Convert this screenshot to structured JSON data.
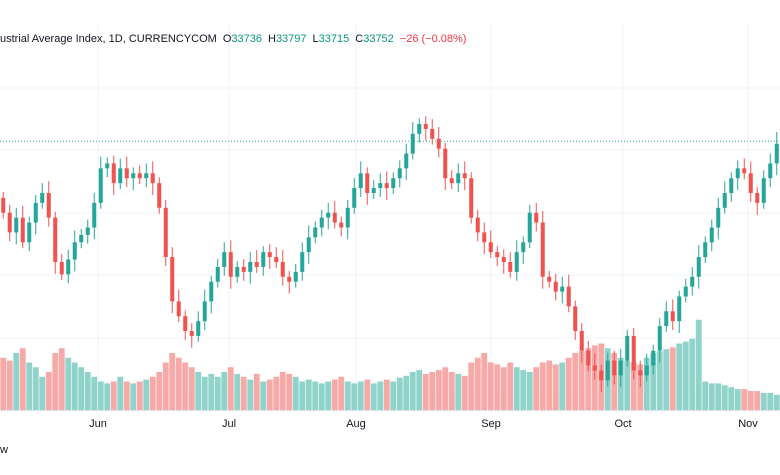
{
  "legend": {
    "title": "ustrial Average Index, 1D, CURRENCYCOM",
    "open_label": "O",
    "open": "33736",
    "high_label": "H",
    "high": "33797",
    "low_label": "L",
    "low": "33715",
    "close_label": "C",
    "close": "33752",
    "change": "−26 (−0.08%)"
  },
  "footer": {
    "text": "w"
  },
  "colors": {
    "up": "#26a69a",
    "down": "#ef5350",
    "up_vol": "#8fd3ca",
    "down_vol": "#f6a9a7",
    "grid": "#f0f3fa"
  },
  "chart_data": {
    "type": "candlestick",
    "x_tick_labels": [
      "Jun",
      "Jul",
      "Aug",
      "Sep",
      "Oct",
      "Nov"
    ],
    "price_range": [
      28500,
      35500
    ],
    "reference_line": 33750,
    "candles": [
      {
        "o": 32600,
        "c": 32300,
        "v": 0.55
      },
      {
        "o": 32300,
        "c": 31900,
        "v": 0.52
      },
      {
        "o": 31900,
        "c": 32200,
        "v": 0.6
      },
      {
        "o": 32200,
        "c": 31700,
        "v": 0.65
      },
      {
        "o": 31700,
        "c": 32100,
        "v": 0.5
      },
      {
        "o": 32100,
        "c": 32500,
        "v": 0.45
      },
      {
        "o": 32500,
        "c": 32700,
        "v": 0.35
      },
      {
        "o": 32700,
        "c": 32200,
        "v": 0.4
      },
      {
        "o": 32200,
        "c": 31300,
        "v": 0.6
      },
      {
        "o": 31300,
        "c": 31050,
        "v": 0.65
      },
      {
        "o": 31050,
        "c": 31350,
        "v": 0.55
      },
      {
        "o": 31350,
        "c": 31700,
        "v": 0.5
      },
      {
        "o": 31700,
        "c": 31850,
        "v": 0.45
      },
      {
        "o": 31850,
        "c": 32000,
        "v": 0.4
      },
      {
        "o": 32000,
        "c": 32500,
        "v": 0.35
      },
      {
        "o": 32500,
        "c": 33200,
        "v": 0.3
      },
      {
        "o": 33200,
        "c": 33300,
        "v": 0.28
      },
      {
        "o": 33300,
        "c": 32900,
        "v": 0.3
      },
      {
        "o": 32900,
        "c": 33200,
        "v": 0.35
      },
      {
        "o": 33200,
        "c": 33000,
        "v": 0.3
      },
      {
        "o": 33000,
        "c": 33100,
        "v": 0.28
      },
      {
        "o": 33100,
        "c": 33000,
        "v": 0.3
      },
      {
        "o": 33000,
        "c": 33100,
        "v": 0.32
      },
      {
        "o": 33100,
        "c": 32900,
        "v": 0.35
      },
      {
        "o": 32900,
        "c": 32400,
        "v": 0.4
      },
      {
        "o": 32400,
        "c": 31400,
        "v": 0.5
      },
      {
        "o": 31400,
        "c": 30500,
        "v": 0.6
      },
      {
        "o": 30500,
        "c": 30200,
        "v": 0.55
      },
      {
        "o": 30200,
        "c": 29900,
        "v": 0.5
      },
      {
        "o": 29900,
        "c": 29800,
        "v": 0.45
      },
      {
        "o": 29800,
        "c": 30100,
        "v": 0.4
      },
      {
        "o": 30100,
        "c": 30500,
        "v": 0.35
      },
      {
        "o": 30500,
        "c": 30900,
        "v": 0.38
      },
      {
        "o": 30900,
        "c": 31200,
        "v": 0.35
      },
      {
        "o": 31200,
        "c": 31500,
        "v": 0.4
      },
      {
        "o": 31500,
        "c": 31000,
        "v": 0.45
      },
      {
        "o": 31000,
        "c": 31200,
        "v": 0.38
      },
      {
        "o": 31200,
        "c": 31100,
        "v": 0.35
      },
      {
        "o": 31100,
        "c": 31300,
        "v": 0.32
      },
      {
        "o": 31300,
        "c": 31200,
        "v": 0.38
      },
      {
        "o": 31200,
        "c": 31500,
        "v": 0.3
      },
      {
        "o": 31500,
        "c": 31400,
        "v": 0.32
      },
      {
        "o": 31400,
        "c": 31300,
        "v": 0.35
      },
      {
        "o": 31300,
        "c": 31000,
        "v": 0.4
      },
      {
        "o": 31000,
        "c": 30900,
        "v": 0.38
      },
      {
        "o": 30900,
        "c": 31100,
        "v": 0.35
      },
      {
        "o": 31100,
        "c": 31500,
        "v": 0.3
      },
      {
        "o": 31500,
        "c": 31800,
        "v": 0.32
      },
      {
        "o": 31800,
        "c": 32000,
        "v": 0.3
      },
      {
        "o": 32000,
        "c": 32200,
        "v": 0.28
      },
      {
        "o": 32200,
        "c": 32300,
        "v": 0.3
      },
      {
        "o": 32300,
        "c": 32100,
        "v": 0.32
      },
      {
        "o": 32100,
        "c": 32000,
        "v": 0.35
      },
      {
        "o": 32000,
        "c": 32400,
        "v": 0.3
      },
      {
        "o": 32400,
        "c": 32800,
        "v": 0.28
      },
      {
        "o": 32800,
        "c": 33100,
        "v": 0.3
      },
      {
        "o": 33100,
        "c": 32700,
        "v": 0.32
      },
      {
        "o": 32700,
        "c": 32800,
        "v": 0.28
      },
      {
        "o": 32800,
        "c": 32900,
        "v": 0.3
      },
      {
        "o": 32900,
        "c": 32800,
        "v": 0.32
      },
      {
        "o": 32800,
        "c": 33000,
        "v": 0.3
      },
      {
        "o": 33000,
        "c": 33200,
        "v": 0.34
      },
      {
        "o": 33200,
        "c": 33500,
        "v": 0.36
      },
      {
        "o": 33500,
        "c": 33900,
        "v": 0.4
      },
      {
        "o": 33900,
        "c": 34100,
        "v": 0.42
      },
      {
        "o": 34100,
        "c": 34000,
        "v": 0.38
      },
      {
        "o": 34000,
        "c": 33800,
        "v": 0.4
      },
      {
        "o": 33800,
        "c": 33600,
        "v": 0.42
      },
      {
        "o": 33600,
        "c": 33000,
        "v": 0.45
      },
      {
        "o": 33000,
        "c": 32900,
        "v": 0.4
      },
      {
        "o": 32900,
        "c": 33100,
        "v": 0.38
      },
      {
        "o": 33100,
        "c": 33000,
        "v": 0.36
      },
      {
        "o": 33000,
        "c": 32200,
        "v": 0.5
      },
      {
        "o": 32200,
        "c": 31900,
        "v": 0.55
      },
      {
        "o": 31900,
        "c": 31700,
        "v": 0.6
      },
      {
        "o": 31700,
        "c": 31500,
        "v": 0.5
      },
      {
        "o": 31500,
        "c": 31400,
        "v": 0.48
      },
      {
        "o": 31400,
        "c": 31300,
        "v": 0.45
      },
      {
        "o": 31300,
        "c": 31100,
        "v": 0.5
      },
      {
        "o": 31100,
        "c": 31500,
        "v": 0.45
      },
      {
        "o": 31500,
        "c": 31700,
        "v": 0.42
      },
      {
        "o": 31700,
        "c": 32300,
        "v": 0.4
      },
      {
        "o": 32300,
        "c": 32100,
        "v": 0.45
      },
      {
        "o": 32100,
        "c": 31000,
        "v": 0.5
      },
      {
        "o": 31000,
        "c": 30900,
        "v": 0.52
      },
      {
        "o": 30900,
        "c": 30700,
        "v": 0.48
      },
      {
        "o": 30700,
        "c": 30800,
        "v": 0.5
      },
      {
        "o": 30800,
        "c": 30400,
        "v": 0.55
      },
      {
        "o": 30400,
        "c": 29900,
        "v": 0.6
      },
      {
        "o": 29900,
        "c": 29500,
        "v": 0.62
      },
      {
        "o": 29500,
        "c": 29200,
        "v": 0.65
      },
      {
        "o": 29200,
        "c": 29100,
        "v": 0.68
      },
      {
        "o": 29100,
        "c": 28900,
        "v": 0.7
      },
      {
        "o": 28900,
        "c": 29300,
        "v": 0.65
      },
      {
        "o": 29300,
        "c": 29000,
        "v": 0.6
      },
      {
        "o": 29000,
        "c": 29300,
        "v": 0.55
      },
      {
        "o": 29300,
        "c": 29800,
        "v": 0.52
      },
      {
        "o": 29800,
        "c": 29100,
        "v": 0.5
      },
      {
        "o": 29100,
        "c": 29000,
        "v": 0.48
      },
      {
        "o": 29000,
        "c": 29200,
        "v": 0.55
      },
      {
        "o": 29200,
        "c": 29500,
        "v": 0.6
      },
      {
        "o": 29500,
        "c": 30000,
        "v": 0.62
      },
      {
        "o": 30000,
        "c": 30300,
        "v": 0.64
      },
      {
        "o": 30300,
        "c": 30100,
        "v": 0.66
      },
      {
        "o": 30100,
        "c": 30600,
        "v": 0.7
      },
      {
        "o": 30600,
        "c": 30800,
        "v": 0.72
      },
      {
        "o": 30800,
        "c": 31000,
        "v": 0.75
      },
      {
        "o": 31000,
        "c": 31400,
        "v": 0.95
      },
      {
        "o": 31400,
        "c": 31700,
        "v": 0.3
      },
      {
        "o": 31700,
        "c": 32000,
        "v": 0.28
      },
      {
        "o": 32000,
        "c": 32400,
        "v": 0.28
      },
      {
        "o": 32400,
        "c": 32700,
        "v": 0.26
      },
      {
        "o": 32700,
        "c": 33000,
        "v": 0.24
      },
      {
        "o": 33000,
        "c": 33200,
        "v": 0.22
      },
      {
        "o": 33200,
        "c": 33100,
        "v": 0.22
      },
      {
        "o": 33100,
        "c": 32700,
        "v": 0.2
      },
      {
        "o": 32700,
        "c": 32500,
        "v": 0.2
      },
      {
        "o": 32500,
        "c": 33000,
        "v": 0.18
      },
      {
        "o": 33000,
        "c": 33300,
        "v": 0.18
      },
      {
        "o": 33300,
        "c": 33700,
        "v": 0.16
      }
    ]
  }
}
